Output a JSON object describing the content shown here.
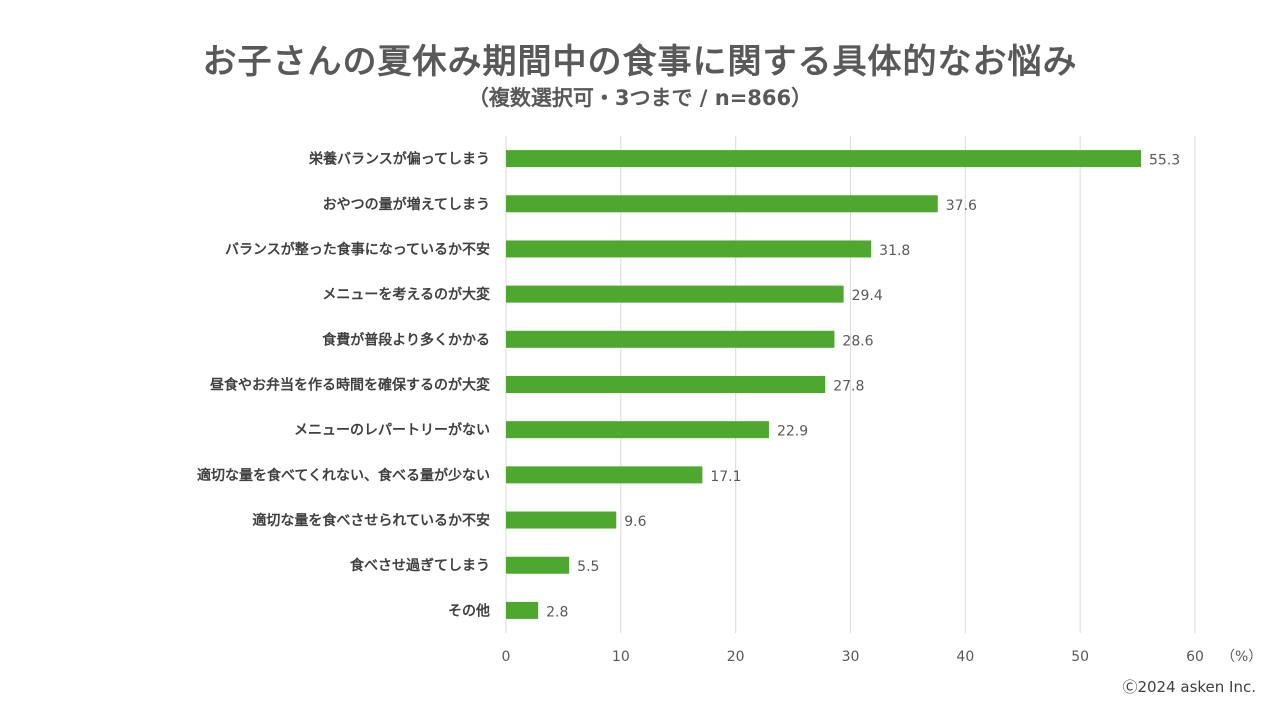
{
  "chart_data": {
    "type": "bar",
    "orientation": "horizontal",
    "title": "お子さんの夏休み期間中の食事に関する具体的なお悩み",
    "subtitle": "（複数選択可・3つまで / n=866）",
    "categories": [
      "栄養バランスが偏ってしまう",
      "おやつの量が増えてしまう",
      "バランスが整った食事になっているか不安",
      "メニューを考えるのが大変",
      "食費が普段より多くかかる",
      "昼食やお弁当を作る時間を確保するのが大変",
      "メニューのレパートリーがない",
      "適切な量を食べてくれない、食べる量が少ない",
      "適切な量を食べさせられているか不安",
      "食べさせ過ぎてしまう",
      "その他"
    ],
    "values": [
      55.3,
      37.6,
      31.8,
      29.4,
      28.6,
      27.8,
      22.9,
      17.1,
      9.6,
      5.5,
      2.8
    ],
    "value_labels": [
      "55.3",
      "37.6",
      "31.8",
      "29.4",
      "28.6",
      "27.8",
      "22.9",
      "17.1",
      "9.6",
      "5.5",
      "2.8"
    ],
    "xlim": [
      0,
      60
    ],
    "xticks": [
      0,
      10,
      20,
      30,
      40,
      50,
      60
    ],
    "xtick_labels": [
      "0",
      "10",
      "20",
      "30",
      "40",
      "50",
      "60"
    ],
    "x_unit": "（%）",
    "grid": true,
    "bar_color": "#4ea72e",
    "grid_color": "#d9d9d9"
  },
  "footer": {
    "copyright": "Ⓒ2024 asken Inc."
  }
}
